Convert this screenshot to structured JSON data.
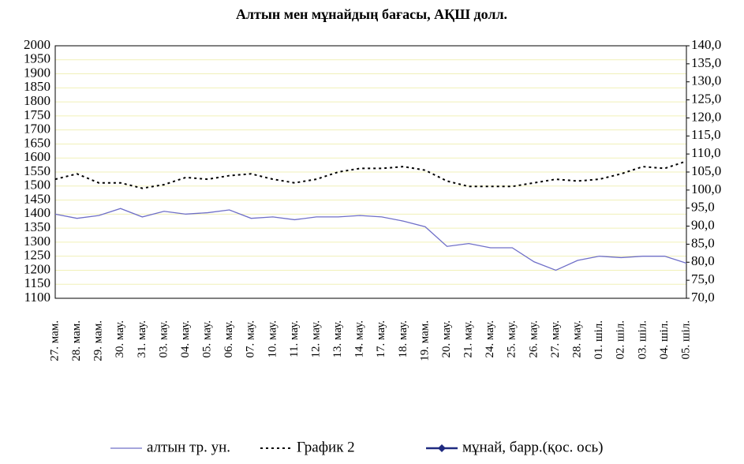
{
  "chart_data": {
    "type": "line",
    "title": "Алтын мен мұнайдың бағасы, АҚШ долл.",
    "categories": [
      "27. мам.",
      "28. мам.",
      "29. мам.",
      "30. мау.",
      "31. мау.",
      "03. мау.",
      "04. мау.",
      "05. мау.",
      "06. мау.",
      "07. мау.",
      "10. мау.",
      "11. мау.",
      "12. мау.",
      "13. мау.",
      "14. мау.",
      "17. мау.",
      "18. мау.",
      "19. мам.",
      "20. мау.",
      "21. мау.",
      "24. мау.",
      "25. мау.",
      "26. мау.",
      "27. мау.",
      "28. мау.",
      "01. шіл.",
      "02. шіл.",
      "03. шіл.",
      "04. шіл.",
      "05. шіл."
    ],
    "series": [
      {
        "name": "алтын тр. ун.",
        "color": "#6f6fc8",
        "style": "solid",
        "values": [
          1400,
          1385,
          1395,
          1420,
          1390,
          1410,
          1400,
          1405,
          1415,
          1385,
          1390,
          1380,
          1390,
          1390,
          1395,
          1390,
          1375,
          1355,
          1285,
          1295,
          1280,
          1280,
          1230,
          1200,
          1235,
          1250,
          1245,
          1250,
          1250,
          1225
        ]
      },
      {
        "name": "График 2",
        "color": "#000000",
        "style": "dotted",
        "axis": "y2",
        "values": [
          103,
          104.5,
          102,
          102,
          100.5,
          101.5,
          103.5,
          103,
          104,
          104.5,
          103,
          102,
          103,
          105,
          106,
          106,
          106.5,
          105.5,
          102.5,
          101,
          101,
          101,
          102,
          103,
          102.5,
          103,
          104.5,
          106.5,
          106,
          108
        ]
      },
      {
        "name": "мұнай, барр.(қос. ось)",
        "color": "#1f2a80",
        "style": "marker",
        "axis": "y2",
        "values": [
          null,
          null,
          null,
          null,
          null,
          null,
          null,
          null,
          null,
          null,
          null,
          null,
          null,
          null,
          null,
          null,
          null,
          null,
          null,
          null,
          null,
          null,
          null,
          null,
          null,
          null,
          null,
          null,
          null,
          null
        ]
      }
    ],
    "ylim": [
      1100,
      2000
    ],
    "yticks": [
      1100,
      1150,
      1200,
      1250,
      1300,
      1350,
      1400,
      1450,
      1500,
      1550,
      1600,
      1650,
      1700,
      1750,
      1800,
      1850,
      1900,
      1950,
      2000
    ],
    "y2lim": [
      70,
      140
    ],
    "y2ticks": [
      {
        "value": 70,
        "label": "70,0"
      },
      {
        "value": 75,
        "label": "75,0"
      },
      {
        "value": 80,
        "label": "80,0"
      },
      {
        "value": 85,
        "label": "85,0"
      },
      {
        "value": 90,
        "label": "90,0"
      },
      {
        "value": 95,
        "label": "95,0"
      },
      {
        "value": 100,
        "label": "100,0"
      },
      {
        "value": 105,
        "label": "105,0"
      },
      {
        "value": 110,
        "label": "110,0"
      },
      {
        "value": 115,
        "label": "115,0"
      },
      {
        "value": 120,
        "label": "120,0"
      },
      {
        "value": 125,
        "label": "125,0"
      },
      {
        "value": 130,
        "label": "130,0"
      },
      {
        "value": 135,
        "label": "135,0"
      },
      {
        "value": 140,
        "label": "140,0"
      }
    ],
    "grid": true,
    "legend": "bottom"
  }
}
